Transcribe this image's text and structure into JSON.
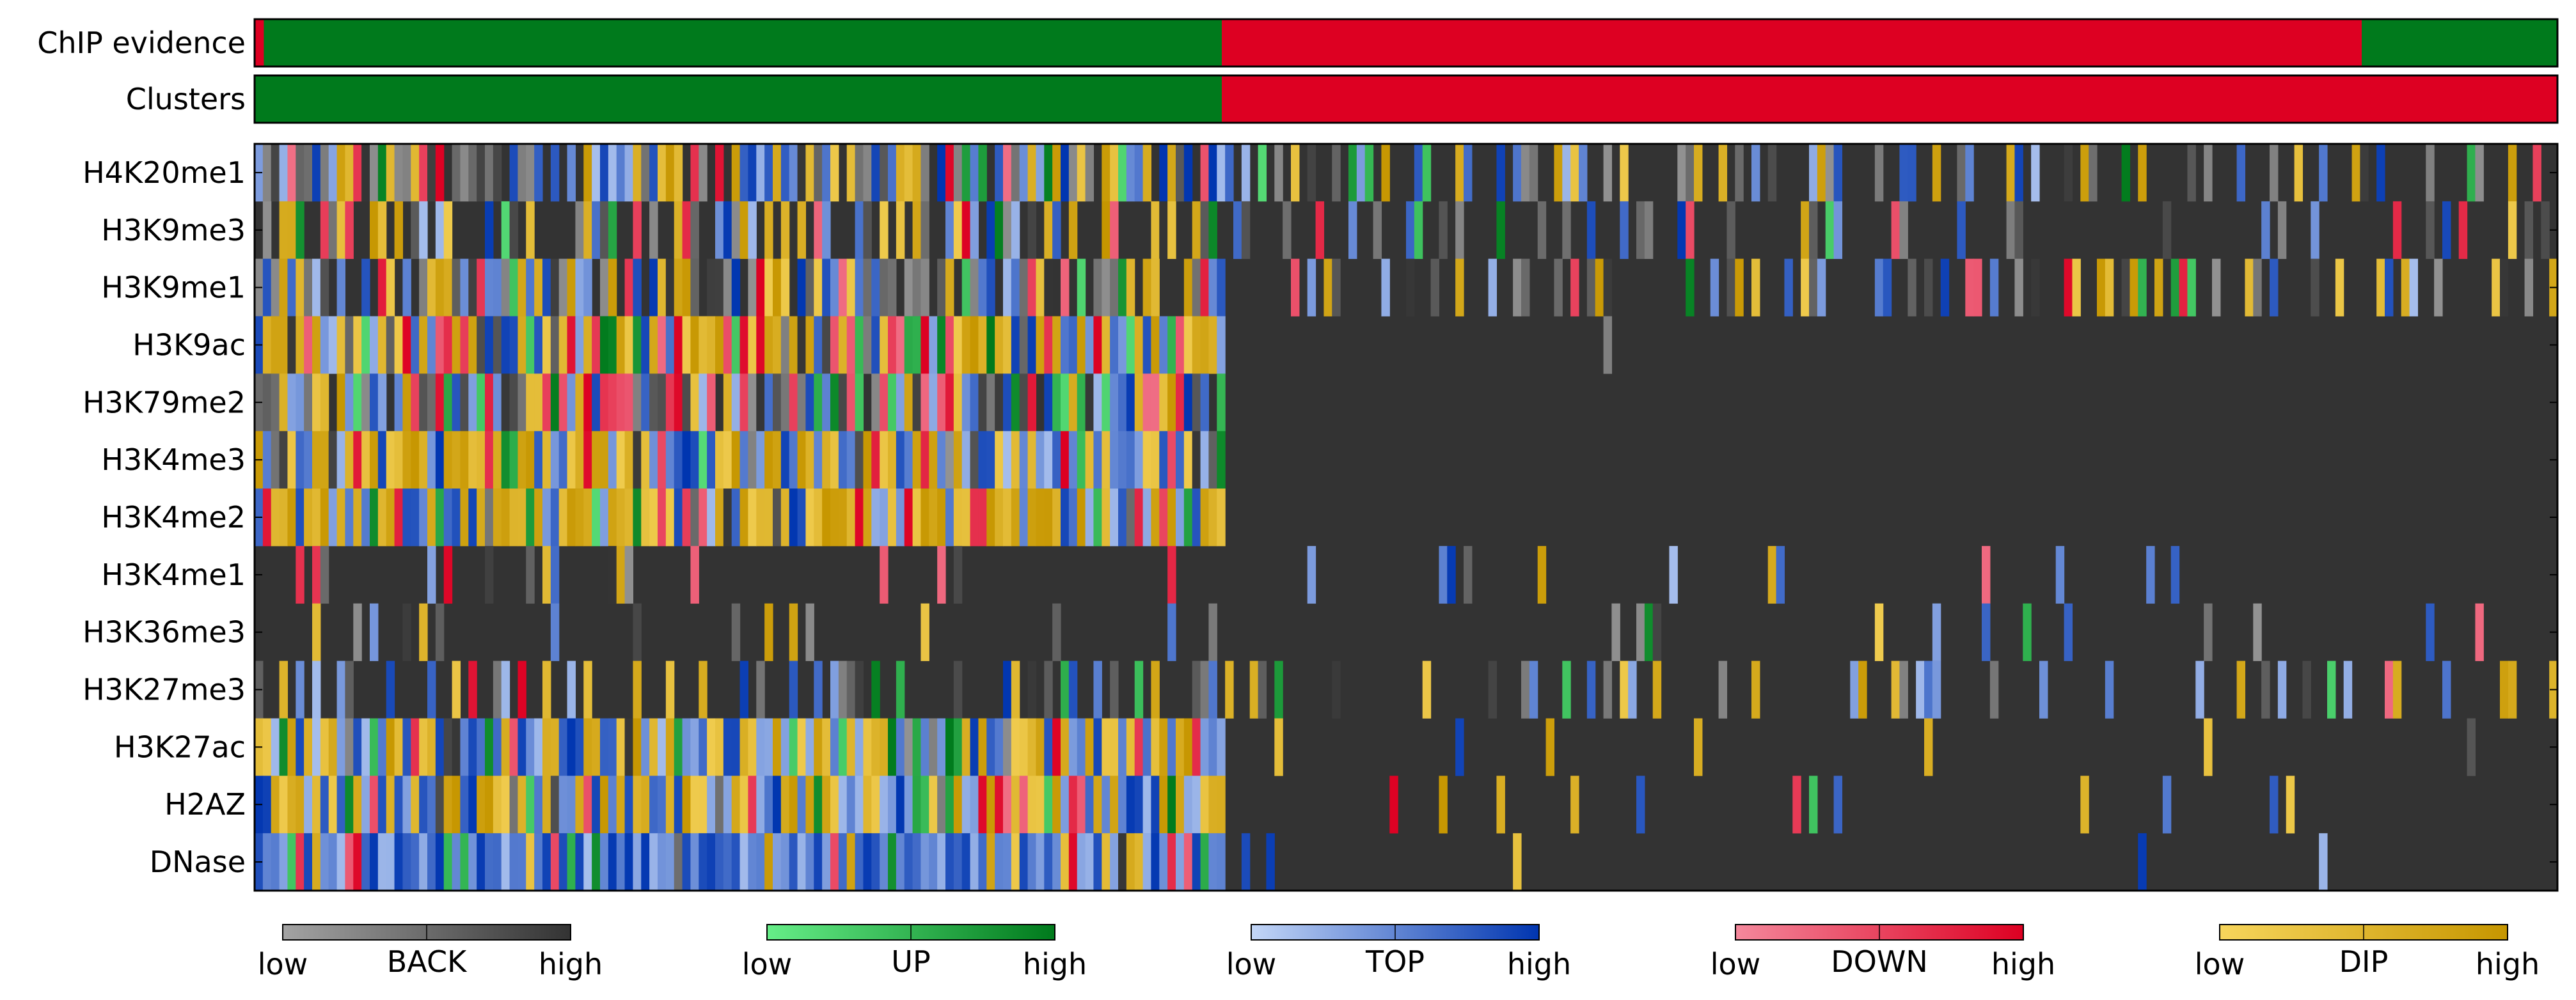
{
  "chart_data": {
    "type": "heatmap",
    "tracks": [
      "ChIP evidence",
      "Clusters"
    ],
    "rows": [
      "H4K20me1",
      "H3K9me3",
      "H3K9me1",
      "H3K9ac",
      "H3K79me2",
      "H3K4me3",
      "H3K4me2",
      "H3K4me1",
      "H3K36me3",
      "H3K27me3",
      "H3K27ac",
      "H2AZ",
      "DNase"
    ],
    "n_columns": 280,
    "track_segments": {
      "ChIP evidence": [
        {
          "from": 0,
          "to": 0.004,
          "class": "DOWN"
        },
        {
          "from": 0.004,
          "to": 0.42,
          "class": "UP"
        },
        {
          "from": 0.42,
          "to": 0.915,
          "class": "DOWN"
        },
        {
          "from": 0.915,
          "to": 1.0,
          "class": "UP"
        }
      ],
      "Clusters": [
        {
          "from": 0,
          "to": 0.42,
          "class": "UP"
        },
        {
          "from": 0.42,
          "to": 1.0,
          "class": "DOWN"
        }
      ]
    },
    "cluster_split_fraction": 0.42,
    "row_activity": {
      "cluster1": [
        0.85,
        0.6,
        0.8,
        1.0,
        0.95,
        1.0,
        1.0,
        0.15,
        0.1,
        0.35,
        1.0,
        1.0,
        1.0
      ],
      "cluster2": [
        0.4,
        0.25,
        0.4,
        0.01,
        0.005,
        0.0,
        0.0,
        0.1,
        0.06,
        0.3,
        0.06,
        0.08,
        0.02
      ]
    },
    "category_weights": {
      "H4K20me1": {
        "BACK": 0.3,
        "UP": 0.07,
        "TOP": 0.28,
        "DOWN": 0.1,
        "DIP": 0.25
      },
      "H3K9me3": {
        "BACK": 0.35,
        "UP": 0.08,
        "TOP": 0.22,
        "DOWN": 0.08,
        "DIP": 0.27
      },
      "H3K9me1": {
        "BACK": 0.3,
        "UP": 0.06,
        "TOP": 0.25,
        "DOWN": 0.1,
        "DIP": 0.29
      },
      "H3K9ac": {
        "BACK": 0.08,
        "UP": 0.12,
        "TOP": 0.32,
        "DOWN": 0.12,
        "DIP": 0.36
      },
      "H3K79me2": {
        "BACK": 0.22,
        "UP": 0.15,
        "TOP": 0.28,
        "DOWN": 0.22,
        "DIP": 0.13
      },
      "H3K4me3": {
        "BACK": 0.08,
        "UP": 0.08,
        "TOP": 0.32,
        "DOWN": 0.07,
        "DIP": 0.45
      },
      "H3K4me2": {
        "BACK": 0.06,
        "UP": 0.06,
        "TOP": 0.33,
        "DOWN": 0.05,
        "DIP": 0.5
      },
      "H3K4me1": {
        "BACK": 0.35,
        "UP": 0.05,
        "TOP": 0.3,
        "DOWN": 0.15,
        "DIP": 0.15
      },
      "H3K36me3": {
        "BACK": 0.4,
        "UP": 0.05,
        "TOP": 0.25,
        "DOWN": 0.15,
        "DIP": 0.15
      },
      "H3K27me3": {
        "BACK": 0.25,
        "UP": 0.1,
        "TOP": 0.3,
        "DOWN": 0.08,
        "DIP": 0.27
      },
      "H3K27ac": {
        "BACK": 0.06,
        "UP": 0.08,
        "TOP": 0.4,
        "DOWN": 0.06,
        "DIP": 0.4
      },
      "H2AZ": {
        "BACK": 0.06,
        "UP": 0.06,
        "TOP": 0.4,
        "DOWN": 0.1,
        "DIP": 0.38
      },
      "DNase": {
        "BACK": 0.02,
        "UP": 0.08,
        "TOP": 0.72,
        "DOWN": 0.05,
        "DIP": 0.13
      }
    },
    "legend": [
      {
        "name": "BACK",
        "low": "low",
        "high": "high",
        "low_color": "#a3a3a3",
        "high_color": "#333333"
      },
      {
        "name": "UP",
        "low": "low",
        "high": "high",
        "low_color": "#66ee88",
        "high_color": "#007a1c"
      },
      {
        "name": "TOP",
        "low": "low",
        "high": "high",
        "low_color": "#c3d6f7",
        "high_color": "#0035b0"
      },
      {
        "name": "DOWN",
        "low": "low",
        "high": "high",
        "low_color": "#f4889c",
        "high_color": "#dd0022"
      },
      {
        "name": "DIP",
        "low": "low",
        "high": "high",
        "low_color": "#f7d55c",
        "high_color": "#c69600"
      }
    ],
    "colors": {
      "background": "#333333",
      "UP_track": "#007a1c",
      "DOWN_track": "#dd0022",
      "BACK": [
        "#a3a3a3",
        "#333333"
      ],
      "UP": [
        "#66ee88",
        "#007a1c"
      ],
      "TOP": [
        "#c3d6f7",
        "#0035b0"
      ],
      "DOWN": [
        "#f4889c",
        "#dd0022"
      ],
      "DIP": [
        "#f7d55c",
        "#c69600"
      ]
    }
  }
}
